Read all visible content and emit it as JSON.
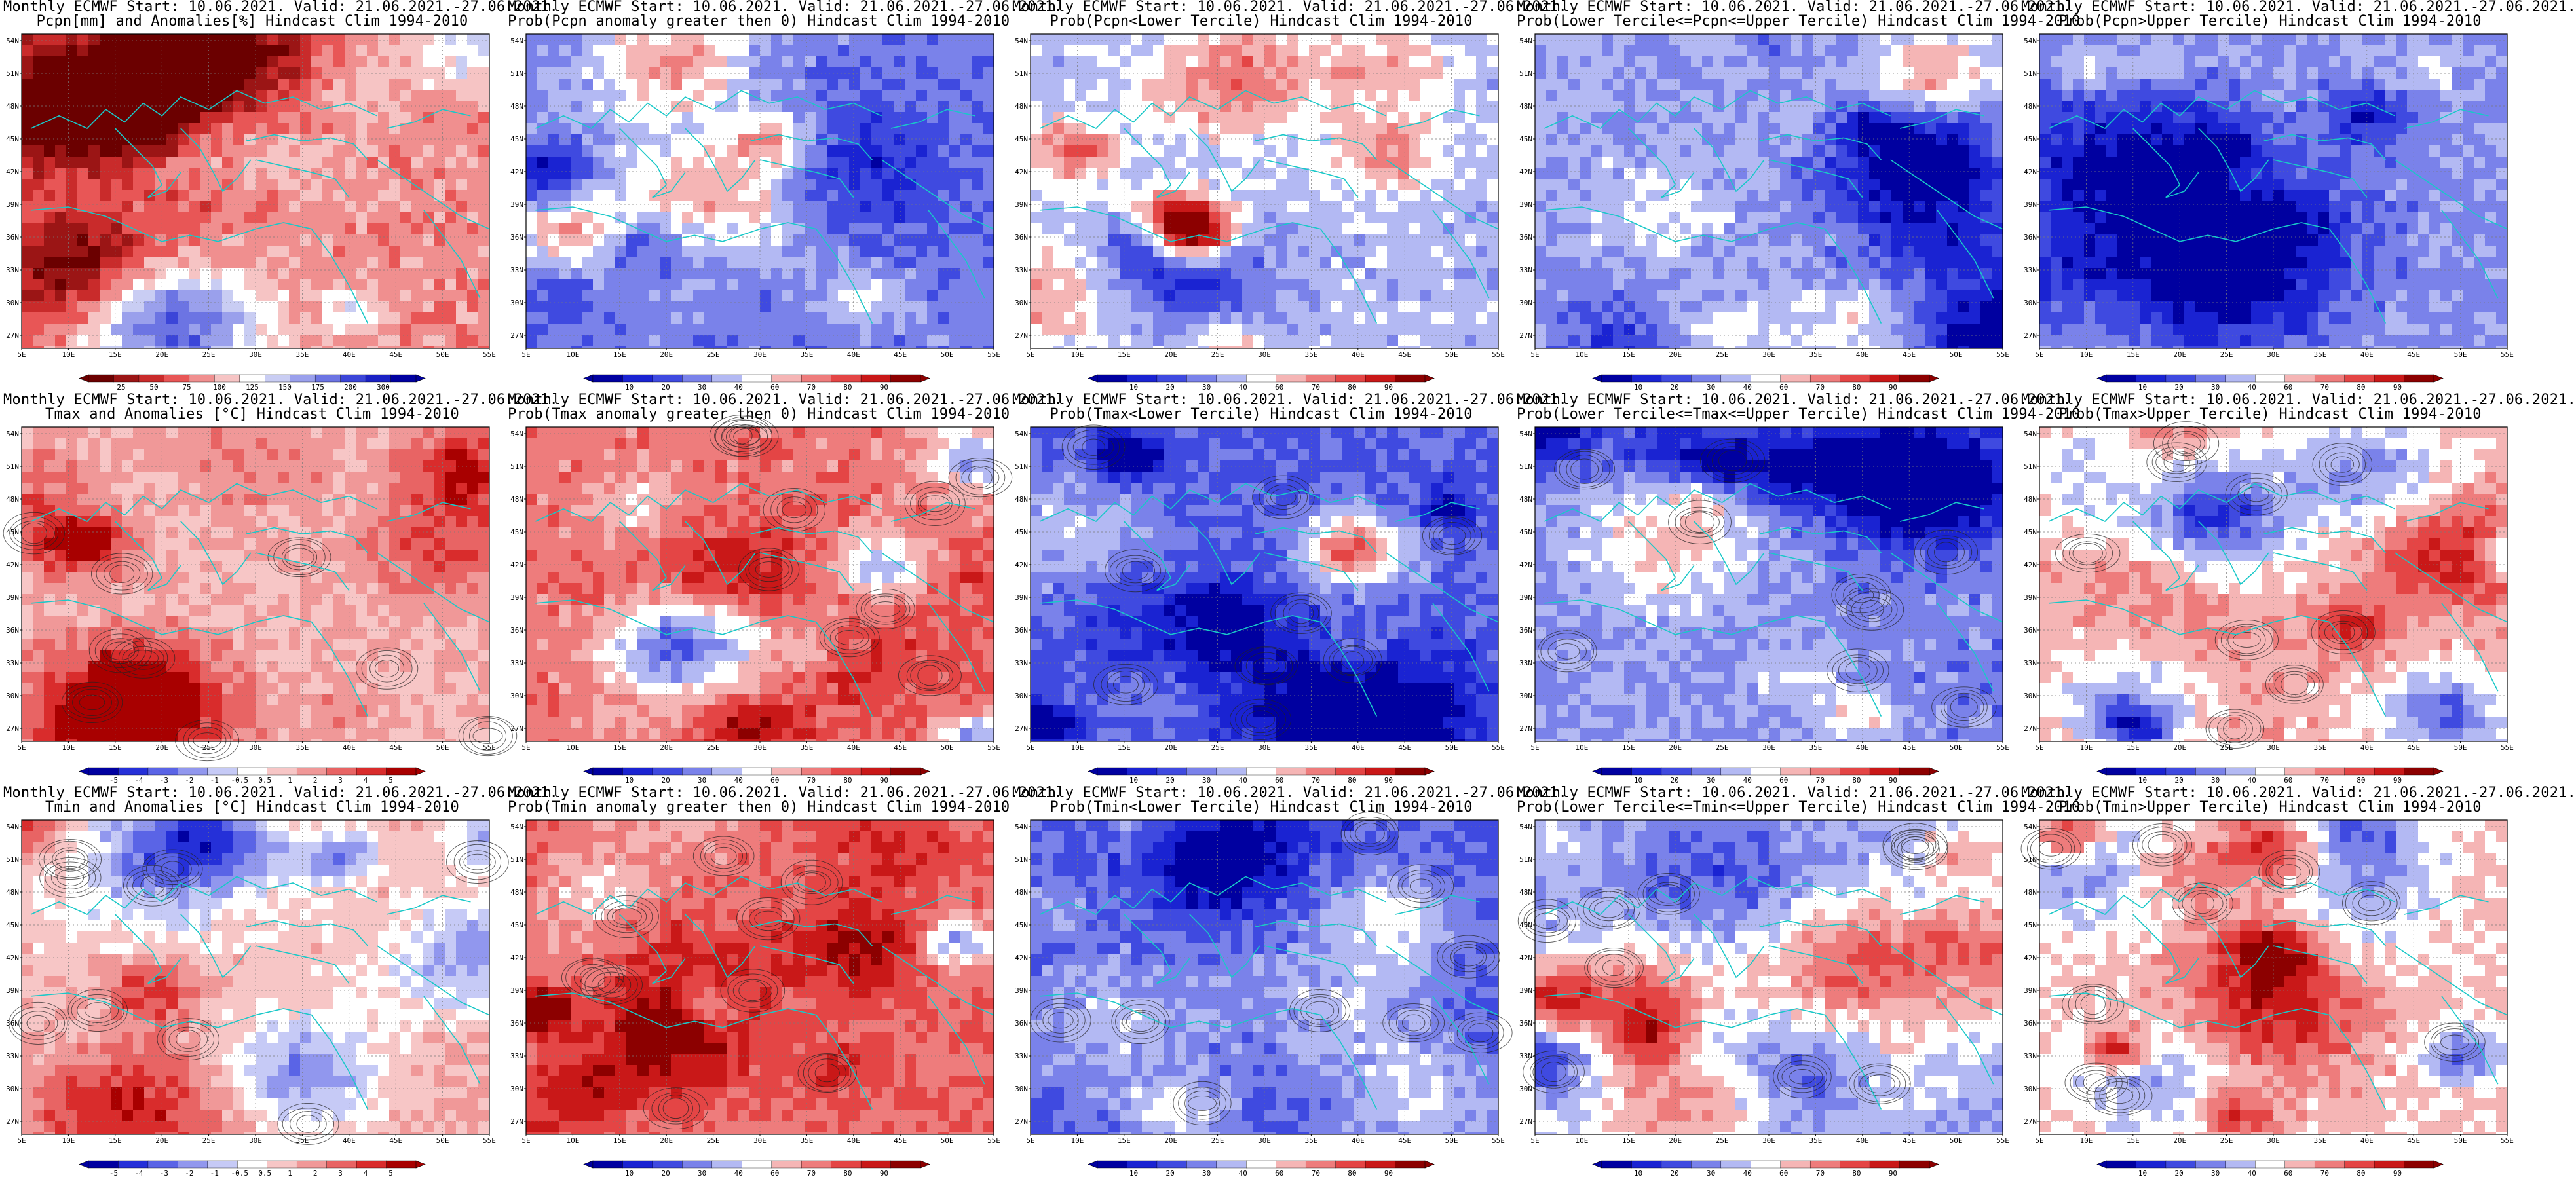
{
  "figure": {
    "background": "#ffffff",
    "lat_labels": [
      "54N",
      "51N",
      "48N",
      "45N",
      "42N",
      "39N",
      "36N",
      "33N",
      "30N",
      "27N"
    ],
    "lon_labels": [
      "5E",
      "10E",
      "15E",
      "20E",
      "25E",
      "30E",
      "35E",
      "40E",
      "45E",
      "50E",
      "55E"
    ],
    "palettes": {
      "precip": [
        "#6b0000",
        "#9b1515",
        "#c92b2b",
        "#e85656",
        "#f08f8f",
        "#f6c4c4",
        "#ffffff",
        "#c9cdf3",
        "#9aa0ec",
        "#6c74e3",
        "#3b45d8",
        "#1a21c4",
        "#0000a0"
      ],
      "prob": [
        "#0000a0",
        "#1a23d2",
        "#3f4ae0",
        "#7a82ea",
        "#b3b9f3",
        "#ffffff",
        "#f5b5b5",
        "#ee7c7c",
        "#e44545",
        "#c91818",
        "#8c0000"
      ],
      "temp": [
        "#0000a0",
        "#2530d8",
        "#5a64e6",
        "#9197ee",
        "#c6caf6",
        "#ffffff",
        "#f7c6c6",
        "#f09898",
        "#e86464",
        "#d92c2c",
        "#a80000"
      ]
    },
    "colorbars": {
      "precip": [
        "25",
        "50",
        "75",
        "100",
        "125",
        "150",
        "175",
        "200",
        "300"
      ],
      "prob": [
        "10",
        "20",
        "30",
        "40",
        "60",
        "70",
        "80",
        "90"
      ],
      "temp": [
        "-5",
        "-4",
        "-3",
        "-2",
        "-1",
        "-0.5",
        "0.5",
        "1",
        "2",
        "3",
        "4",
        "5"
      ]
    }
  },
  "panels": [
    {
      "title1": "Monthly ECMWF Start: 10.06.2021. Valid: 21.06.2021.-27.06.2021.",
      "title2": "Pcpn[mm] and Anomalies[%] Hindcast Clim 1994-2010",
      "palette": "precip",
      "colorbar": "precip",
      "seed": 11,
      "bias": -0.45,
      "contours": false
    },
    {
      "title1": "Monthly ECMWF Start: 10.06.2021. Valid: 21.06.2021.-27.06.2021.",
      "title2": "Prob(Pcpn anomaly greater then 0) Hindcast Clim 1994-2010",
      "palette": "prob",
      "colorbar": "prob",
      "seed": 23,
      "bias": -0.55,
      "contours": false
    },
    {
      "title1": "Monthly ECMWF Start: 10.06.2021. Valid: 21.06.2021.-27.06.2021.",
      "title2": "Prob(Pcpn<Lower Tercile) Hindcast Clim 1994-2010",
      "palette": "prob",
      "colorbar": "prob",
      "seed": 37,
      "bias": -0.25,
      "contours": false
    },
    {
      "title1": "Monthly ECMWF Start: 10.06.2021. Valid: 21.06.2021.-27.06.2021.",
      "title2": "Prob(Lower Tercile<=Pcpn<=Upper Tercile) Hindcast Clim 1994-2010",
      "palette": "prob",
      "colorbar": "prob",
      "seed": 41,
      "bias": -0.35,
      "contours": false
    },
    {
      "title1": "Monthly ECMWF Start: 10.06.2021. Valid: 21.06.2021.-27.06.2021.",
      "title2": "Prob(Pcpn>Upper Tercile) Hindcast Clim 1994-2010",
      "palette": "prob",
      "colorbar": "prob",
      "seed": 53,
      "bias": -0.45,
      "contours": false
    },
    {
      "title1": "Monthly ECMWF Start: 10.06.2021. Valid: 21.06.2021.-27.06.2021.",
      "title2": "Tmax and Anomalies [°C] Hindcast Clim 1994-2010",
      "palette": "temp",
      "colorbar": "temp",
      "seed": 61,
      "bias": 0.35,
      "contours": true
    },
    {
      "title1": "Monthly ECMWF Start: 10.06.2021. Valid: 21.06.2021.-27.06.2021.",
      "title2": "Prob(Tmax anomaly greater then 0) Hindcast Clim 1994-2010",
      "palette": "prob",
      "colorbar": "prob",
      "seed": 71,
      "bias": 0.55,
      "contours": true
    },
    {
      "title1": "Monthly ECMWF Start: 10.06.2021. Valid: 21.06.2021.-27.06.2021.",
      "title2": "Prob(Tmax<Lower Tercile) Hindcast Clim 1994-2010",
      "palette": "prob",
      "colorbar": "prob",
      "seed": 83,
      "bias": -0.7,
      "contours": true
    },
    {
      "title1": "Monthly ECMWF Start: 10.06.2021. Valid: 21.06.2021.-27.06.2021.",
      "title2": "Prob(Lower Tercile<=Tmax<=Upper Tercile) Hindcast Clim 1994-2010",
      "palette": "prob",
      "colorbar": "prob",
      "seed": 97,
      "bias": -0.5,
      "contours": true
    },
    {
      "title1": "Monthly ECMWF Start: 10.06.2021. Valid: 21.06.2021.-27.06.2021.",
      "title2": "Prob(Tmax>Upper Tercile) Hindcast Clim 1994-2010",
      "palette": "prob",
      "colorbar": "prob",
      "seed": 101,
      "bias": 0.3,
      "contours": true
    },
    {
      "title1": "Monthly ECMWF Start: 10.06.2021. Valid: 21.06.2021.-27.06.2021.",
      "title2": "Tmin and Anomalies [°C] Hindcast Clim 1994-2010",
      "palette": "temp",
      "colorbar": "temp",
      "seed": 113,
      "bias": 0.3,
      "contours": true
    },
    {
      "title1": "Monthly ECMWF Start: 10.06.2021. Valid: 21.06.2021.-27.06.2021.",
      "title2": "Prob(Tmin anomaly greater then 0) Hindcast Clim 1994-2010",
      "palette": "prob",
      "colorbar": "prob",
      "seed": 127,
      "bias": 0.6,
      "contours": true
    },
    {
      "title1": "Monthly ECMWF Start: 10.06.2021. Valid: 21.06.2021.-27.06.2021.",
      "title2": "Prob(Tmin<Lower Tercile) Hindcast Clim 1994-2010",
      "palette": "prob",
      "colorbar": "prob",
      "seed": 131,
      "bias": -0.7,
      "contours": true
    },
    {
      "title1": "Monthly ECMWF Start: 10.06.2021. Valid: 21.06.2021.-27.06.2021.",
      "title2": "Prob(Lower Tercile<=Tmin<=Upper Tercile) Hindcast Clim 1994-2010",
      "palette": "prob",
      "colorbar": "prob",
      "seed": 139,
      "bias": -0.35,
      "contours": true
    },
    {
      "title1": "Monthly ECMWF Start: 10.06.2021. Valid: 21.06.2021.-27.06.2021.",
      "title2": "Prob(Tmin>Upper Tercile) Hindcast Clim 1994-2010",
      "palette": "prob",
      "colorbar": "prob",
      "seed": 149,
      "bias": 0.2,
      "contours": true
    }
  ]
}
